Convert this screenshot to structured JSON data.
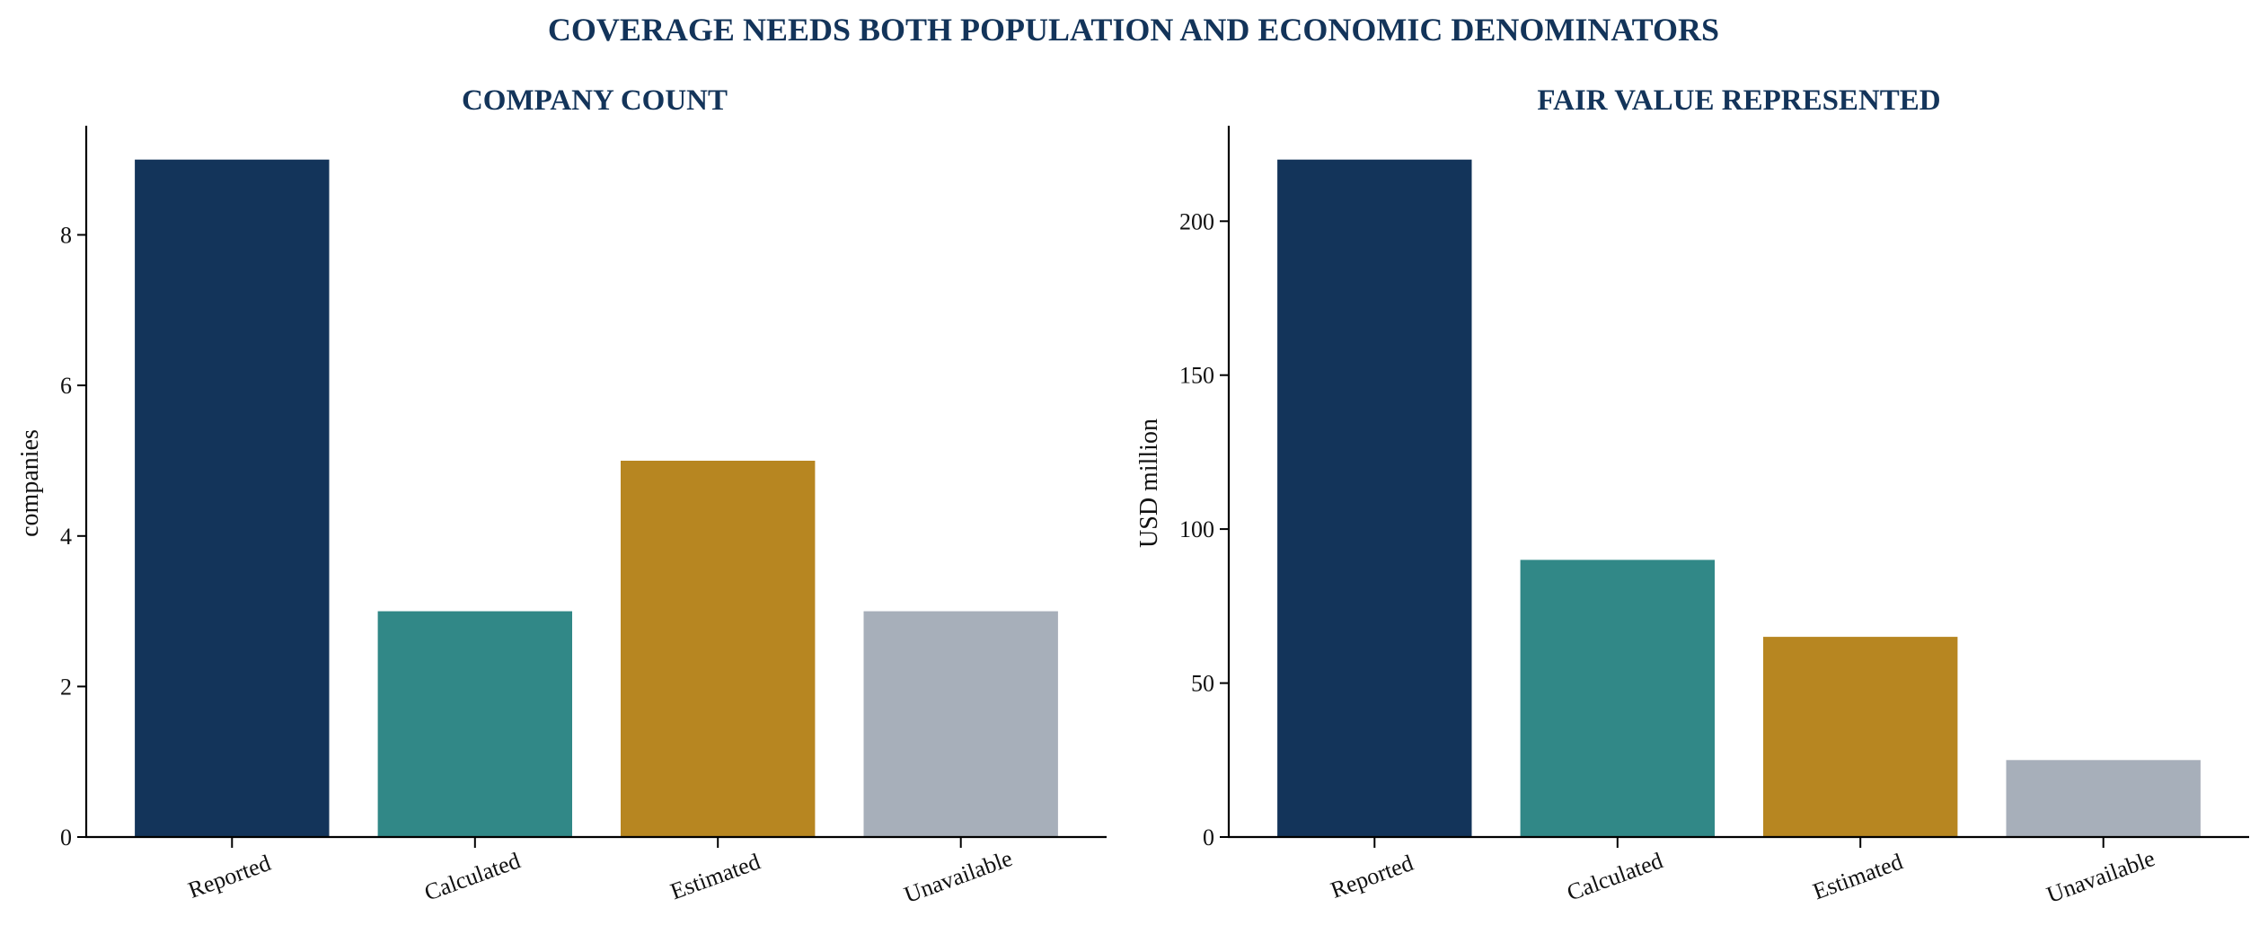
{
  "figure_title": "COVERAGE NEEDS BOTH POPULATION AND ECONOMIC DENOMINATORS",
  "colors": {
    "Reported": "#13345a",
    "Calculated": "#318887",
    "Estimated": "#b78621",
    "Unavailable": "#a7afba",
    "title": "#13345a"
  },
  "chart_data": [
    {
      "type": "bar",
      "title": "COMPANY COUNT",
      "xlabel": "",
      "ylabel": "companies",
      "categories": [
        "Reported",
        "Calculated",
        "Estimated",
        "Unavailable"
      ],
      "values": [
        9,
        3,
        5,
        3
      ],
      "ylim": [
        0,
        9.45
      ],
      "yticks": [
        0,
        2,
        4,
        6,
        8
      ],
      "grid": false,
      "legend": "none"
    },
    {
      "type": "bar",
      "title": "FAIR VALUE REPRESENTED",
      "xlabel": "",
      "ylabel": "USD million",
      "categories": [
        "Reported",
        "Calculated",
        "Estimated",
        "Unavailable"
      ],
      "values": [
        220,
        90,
        65,
        25
      ],
      "ylim": [
        0,
        231
      ],
      "yticks": [
        0,
        50,
        100,
        150,
        200
      ],
      "grid": false,
      "legend": "none"
    }
  ]
}
